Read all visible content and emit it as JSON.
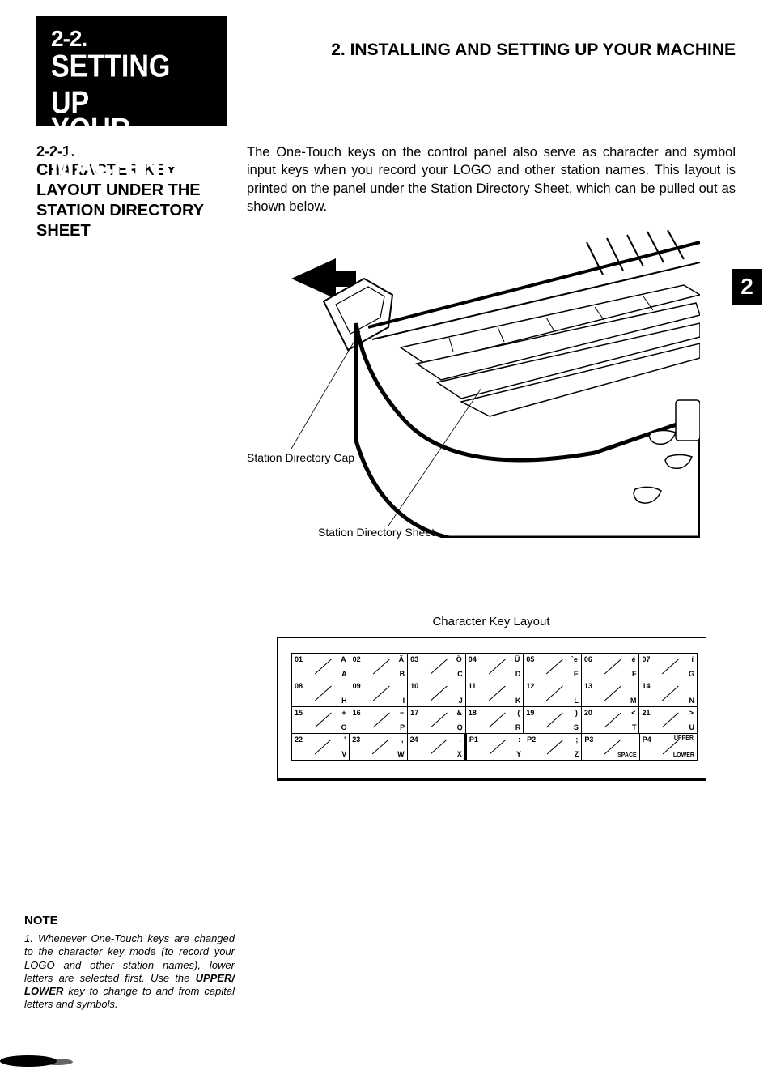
{
  "chapter_heading": "2.  INSTALLING AND SETTING UP YOUR MACHINE",
  "title_block": {
    "section_number": "2-2.",
    "line1": "SETTING UP",
    "line2": "YOUR MACHINE"
  },
  "subheading": {
    "number": "2-2-1.",
    "text": "CHARACTER KEY LAYOUT UNDER THE STATION DIRECTORY SHEET"
  },
  "body_text": "The One-Touch keys on the control panel also serve as character and symbol input keys when you record your LOGO and other station names. This layout is printed on the panel under the Station Directory Sheet, which can be pulled out as shown below.",
  "page_tab": "2",
  "callouts": {
    "cap": "Station Directory Cap",
    "sheet": "Station Directory Sheet"
  },
  "key_layout_title": "Character Key Layout",
  "key_rows": [
    [
      {
        "tl": "01",
        "tr": "A",
        "br": "A"
      },
      {
        "tl": "02",
        "tr": "Ä",
        "br": "B"
      },
      {
        "tl": "03",
        "tr": "Ö",
        "br": "C"
      },
      {
        "tl": "04",
        "tr": "Ü",
        "br": "D"
      },
      {
        "tl": "05",
        "tr": "`e",
        "br": "E"
      },
      {
        "tl": "06",
        "tr": "é",
        "br": "F"
      },
      {
        "tl": "07",
        "tr": "í",
        "br": "G"
      }
    ],
    [
      {
        "tl": "08",
        "tr": "",
        "br": "H"
      },
      {
        "tl": "09",
        "tr": "",
        "br": "I"
      },
      {
        "tl": "10",
        "tr": "",
        "br": "J"
      },
      {
        "tl": "11",
        "tr": "",
        "br": "K"
      },
      {
        "tl": "12",
        "tr": "",
        "br": "L"
      },
      {
        "tl": "13",
        "tr": "",
        "br": "M"
      },
      {
        "tl": "14",
        "tr": "",
        "br": "N"
      }
    ],
    [
      {
        "tl": "15",
        "tr": "+",
        "br": "O"
      },
      {
        "tl": "16",
        "tr": "−",
        "br": "P"
      },
      {
        "tl": "17",
        "tr": "&",
        "br": "Q"
      },
      {
        "tl": "18",
        "tr": "(",
        "br": "R"
      },
      {
        "tl": "19",
        "tr": ")",
        "br": "S"
      },
      {
        "tl": "20",
        "tr": "<",
        "br": "T"
      },
      {
        "tl": "21",
        "tr": ">",
        "br": "U"
      }
    ],
    [
      {
        "tl": "22",
        "tr": "'",
        "br": "V"
      },
      {
        "tl": "23",
        "tr": ",",
        "br": "W"
      },
      {
        "tl": "24",
        "tr": ".",
        "br": "X",
        "dbl": true
      },
      {
        "tl": "P1",
        "tr": ":",
        "br": "Y"
      },
      {
        "tl": "P2",
        "tr": ";",
        "br": "Z"
      },
      {
        "tl": "P3",
        "tr": "",
        "br": "SPACE"
      },
      {
        "tl": "P4",
        "tr": "UPPER",
        "br": "LOWER"
      }
    ]
  ],
  "note": {
    "heading": "NOTE",
    "item_num": "1.",
    "text_pre": "Whenever One-Touch keys are changed to the character key mode (to record your LOGO and other station names), lower letters are selected first. Use the ",
    "bold": "UPPER/ LOWER",
    "text_post": " key to change to and from capital letters and symbols."
  },
  "colors": {
    "black": "#000000",
    "white": "#ffffff"
  }
}
